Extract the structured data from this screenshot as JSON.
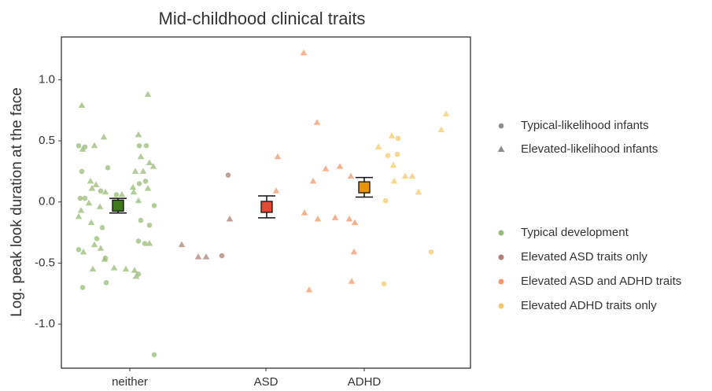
{
  "chart_data": {
    "type": "strip",
    "title": "Mid-childhood clinical traits",
    "y_label": "Log. peak look duration at the face",
    "xlim": [
      0,
      5.2
    ],
    "ylim": [
      -1.36,
      1.35
    ],
    "xticks": [
      {
        "value": 0.87,
        "label": "neither"
      },
      {
        "value": 2.6,
        "label": "ASD"
      },
      {
        "value": 3.85,
        "label": "ADHD"
      }
    ],
    "yticks": [
      {
        "value": 1.0,
        "label": "1.0"
      },
      {
        "value": 0.5,
        "label": "0.5"
      },
      {
        "value": 0.0,
        "label": "0.0"
      },
      {
        "value": -0.5,
        "label": "-0.5"
      },
      {
        "value": -1.0,
        "label": "-1.0"
      }
    ],
    "grid": false,
    "shape_legend": [
      {
        "name": "Typical-likelihood infants",
        "shape": "circle"
      },
      {
        "name": "Elevated-likelihood infants",
        "shape": "triangle"
      }
    ],
    "series": [
      {
        "name": "Typical development",
        "color": "#9bbb78",
        "x": [
          0.26,
          0.22,
          0.3,
          0.27,
          0.42,
          0.54,
          0.26,
          0.37,
          0.44,
          0.5,
          0.39,
          0.24,
          0.3,
          0.25,
          0.35,
          0.49,
          0.56,
          0.22,
          0.38,
          0.52,
          0.45,
          0.22,
          0.28,
          0.42,
          0.5,
          0.56,
          0.67,
          0.82,
          0.55,
          0.4,
          0.57,
          0.27,
          0.59,
          0.7,
          0.77,
          0.92,
          0.98,
          0.91,
          0.94,
          0.98,
          0.99,
          1.08,
          1.01,
          1.1,
          1.12,
          1.17,
          1.04,
          1.07,
          0.99,
          1.1,
          1.18,
          1.01,
          1.12,
          0.98,
          1.06,
          1.12,
          0.93,
          0.98,
          0.95,
          1.18
        ],
        "values": [
          0.79,
          0.46,
          0.45,
          0.43,
          0.46,
          0.53,
          0.25,
          0.17,
          0.14,
          0.09,
          0.11,
          0.03,
          0.03,
          -0.07,
          -0.01,
          -0.04,
          0.08,
          -0.12,
          -0.17,
          -0.21,
          -0.3,
          -0.39,
          -0.41,
          -0.35,
          -0.38,
          -0.46,
          -0.54,
          -0.55,
          -0.47,
          -0.55,
          -0.66,
          -0.7,
          0.28,
          0.06,
          0.06,
          0.08,
          0.01,
          0.12,
          0.25,
          0.55,
          0.46,
          0.46,
          0.37,
          0.88,
          0.32,
          0.29,
          0.25,
          0.17,
          0.15,
          0.11,
          -0.03,
          -0.15,
          -0.19,
          -0.32,
          -0.34,
          -0.34,
          -0.56,
          -0.59,
          -0.61,
          -1.25
        ],
        "shapes": [
          "triangle",
          "circle",
          "circle",
          "triangle",
          "triangle",
          "triangle",
          "circle",
          "triangle",
          "triangle",
          "circle",
          "triangle",
          "circle",
          "circle",
          "triangle",
          "triangle",
          "triangle",
          "triangle",
          "triangle",
          "triangle",
          "circle",
          "circle",
          "circle",
          "triangle",
          "triangle",
          "triangle",
          "circle",
          "triangle",
          "triangle",
          "triangle",
          "triangle",
          "circle",
          "circle",
          "circle",
          "circle",
          "triangle",
          "triangle",
          "triangle",
          "triangle",
          "triangle",
          "triangle",
          "circle",
          "circle",
          "triangle",
          "triangle",
          "triangle",
          "triangle",
          "triangle",
          "circle",
          "circle",
          "triangle",
          "circle",
          "circle",
          "circle",
          "circle",
          "circle",
          "triangle",
          "triangle",
          "circle",
          "triangle",
          "circle"
        ]
      },
      {
        "name": "Elevated ASD traits only",
        "color": "#b08078",
        "x": [
          1.53,
          1.74,
          1.84,
          2.04,
          2.12,
          2.14
        ],
        "values": [
          -0.35,
          -0.45,
          -0.45,
          -0.44,
          0.22,
          -0.14
        ],
        "shapes": [
          "triangle",
          "triangle",
          "triangle",
          "circle",
          "circle",
          "triangle"
        ]
      },
      {
        "name": "Elevated ASD and ADHD traits",
        "color": "#f29a6c",
        "x": [
          3.08,
          3.25,
          2.75,
          2.73,
          3.09,
          3.2,
          3.36,
          3.54,
          3.68,
          3.26,
          3.48,
          3.66,
          3.73,
          3.72,
          3.15,
          3.69
        ],
        "values": [
          1.22,
          0.65,
          0.37,
          0.09,
          -0.09,
          0.17,
          0.27,
          0.29,
          0.21,
          -0.14,
          -0.13,
          -0.14,
          -0.17,
          -0.41,
          -0.72,
          -0.65
        ],
        "shapes": [
          "triangle",
          "triangle",
          "triangle",
          "triangle",
          "triangle",
          "triangle",
          "triangle",
          "triangle",
          "triangle",
          "triangle",
          "triangle",
          "triangle",
          "triangle",
          "triangle",
          "triangle",
          "triangle"
        ]
      },
      {
        "name": "Elevated ADHD traits only",
        "color": "#f5c96a",
        "x": [
          4.03,
          4.15,
          4.2,
          4.28,
          4.27,
          4.22,
          4.23,
          4.12,
          4.37,
          4.46,
          4.54,
          4.1,
          4.7,
          4.83,
          4.89
        ],
        "values": [
          0.45,
          0.38,
          0.54,
          0.52,
          0.39,
          0.3,
          0.17,
          0.01,
          0.21,
          0.21,
          0.08,
          -0.67,
          -0.41,
          0.59,
          0.72
        ],
        "shapes": [
          "triangle",
          "circle",
          "triangle",
          "circle",
          "circle",
          "triangle",
          "triangle",
          "circle",
          "triangle",
          "triangle",
          "triangle",
          "circle",
          "circle",
          "triangle",
          "triangle"
        ]
      }
    ],
    "means": {
      "x": [
        0.72,
        2.61,
        3.85
      ],
      "values": [
        -0.03,
        -0.04,
        0.12
      ],
      "errors": [
        0.06,
        0.09,
        0.08
      ],
      "colors": [
        "#3f7a1a",
        "#e34a33",
        "#e69500"
      ]
    }
  }
}
